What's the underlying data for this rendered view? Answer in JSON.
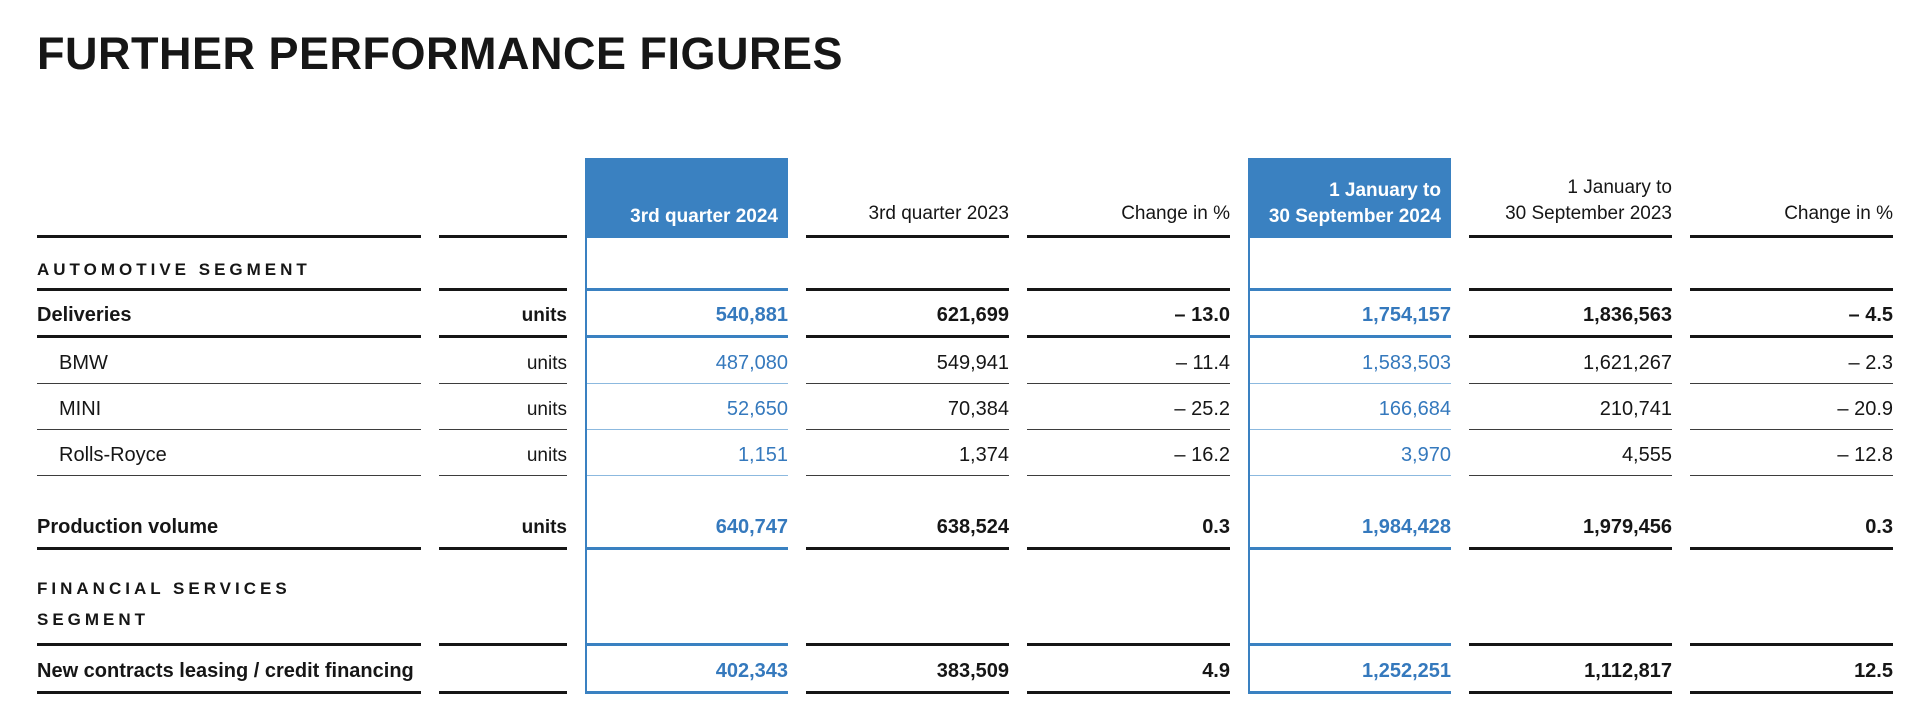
{
  "title": "FURTHER PERFORMANCE FIGURES",
  "colors": {
    "accent_blue": "#3a81c1",
    "blue_value_text": "#3579bd",
    "text": "#161616"
  },
  "table": {
    "headers": {
      "q3_2024": "3rd quarter 2024",
      "q3_2023": "3rd quarter 2023",
      "change_quarter": "Change in %",
      "ytd_2024_line1": "1 January to",
      "ytd_2024_line2": "30 September 2024",
      "ytd_2023_line1": "1 January to",
      "ytd_2023_line2": "30 September 2023",
      "change_ytd": "Change in %"
    },
    "rows": [
      {
        "type": "section",
        "label": "AUTOMOTIVE SEGMENT"
      },
      {
        "type": "main",
        "label": "Deliveries",
        "units": "units",
        "values": [
          "540,881",
          "621,699",
          "– 13.0",
          "1,754,157",
          "1,836,563",
          "– 4.5"
        ]
      },
      {
        "type": "sub",
        "label": "BMW",
        "units": "units",
        "values": [
          "487,080",
          "549,941",
          "– 11.4",
          "1,583,503",
          "1,621,267",
          "– 2.3"
        ]
      },
      {
        "type": "sub",
        "label": "MINI",
        "units": "units",
        "values": [
          "52,650",
          "70,384",
          "– 25.2",
          "166,684",
          "210,741",
          "– 20.9"
        ]
      },
      {
        "type": "sub",
        "label": "Rolls-Royce",
        "units": "units",
        "values": [
          "1,151",
          "1,374",
          "– 16.2",
          "3,970",
          "4,555",
          "– 12.8"
        ]
      },
      {
        "type": "spacer"
      },
      {
        "type": "main",
        "label": "Production volume",
        "units": "units",
        "values": [
          "640,747",
          "638,524",
          "0.3",
          "1,984,428",
          "1,979,456",
          "0.3"
        ]
      },
      {
        "type": "section",
        "label_line1": "FINANCIAL SERVICES",
        "label_line2": "SEGMENT"
      },
      {
        "type": "main",
        "label": "New contracts leasing / credit financing",
        "units": "",
        "values": [
          "402,343",
          "383,509",
          "4.9",
          "1,252,251",
          "1,112,817",
          "12.5"
        ]
      }
    ]
  }
}
